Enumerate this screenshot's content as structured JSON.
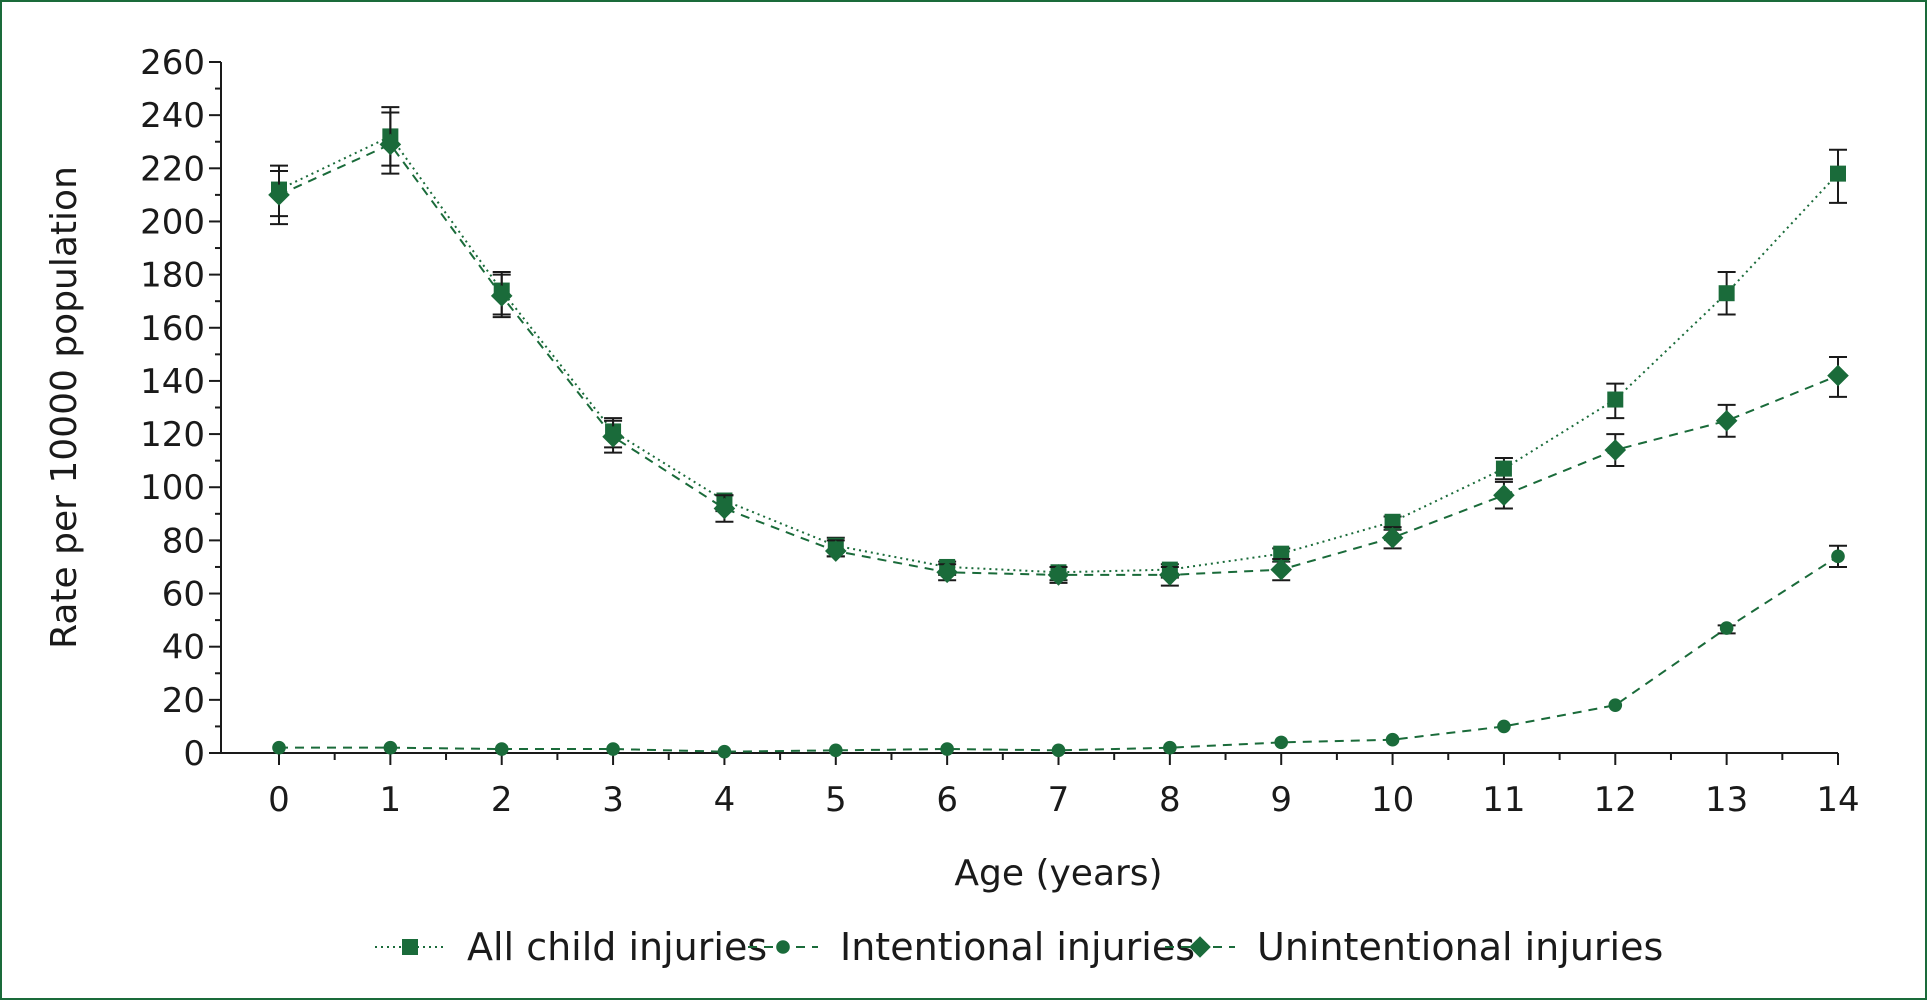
{
  "chart_data": {
    "type": "line",
    "xlabel": "Age (years)",
    "ylabel": "Rate per 10000 population",
    "xlim": [
      0,
      14
    ],
    "ylim": [
      0,
      260
    ],
    "x": [
      0,
      1,
      2,
      3,
      4,
      5,
      6,
      7,
      8,
      9,
      10,
      11,
      12,
      13,
      14
    ],
    "y_ticks": [
      0,
      20,
      40,
      60,
      80,
      100,
      120,
      140,
      160,
      180,
      200,
      220,
      240,
      260
    ],
    "grid": false,
    "legend_position": "bottom",
    "color": "#1a6b3a",
    "series": [
      {
        "name": "All child injuries",
        "marker": "square",
        "line_style": "dotted",
        "values": [
          212,
          232,
          174,
          121,
          95,
          78,
          70,
          68,
          69,
          75,
          87,
          107,
          133,
          173,
          218
        ],
        "error_low": [
          202,
          221,
          165,
          115,
          91,
          74,
          67,
          65,
          66,
          72,
          84,
          103,
          126,
          165,
          207
        ],
        "error_high": [
          221,
          243,
          181,
          126,
          97,
          81,
          72,
          70,
          71,
          77,
          89,
          111,
          139,
          181,
          227
        ]
      },
      {
        "name": "Intentional injuries",
        "marker": "circle",
        "line_style": "dashed",
        "values": [
          2,
          2,
          1.5,
          1.5,
          0.5,
          1,
          1.5,
          1,
          2,
          4,
          5,
          10,
          18,
          47,
          74
        ],
        "error_low": [
          null,
          null,
          null,
          null,
          null,
          null,
          null,
          null,
          null,
          null,
          null,
          null,
          null,
          45,
          70
        ],
        "error_high": [
          null,
          null,
          null,
          null,
          null,
          null,
          null,
          null,
          null,
          null,
          null,
          null,
          null,
          48,
          78
        ]
      },
      {
        "name": "Unintentional injuries",
        "marker": "diamond",
        "line_style": "dashed",
        "values": [
          210,
          229,
          172,
          119,
          92,
          76,
          68,
          67,
          67,
          69,
          81,
          97,
          114,
          125,
          142
        ],
        "error_low": [
          199,
          218,
          164,
          113,
          87,
          74,
          65,
          64,
          63,
          65,
          77,
          92,
          108,
          119,
          134
        ],
        "error_high": [
          219,
          241,
          180,
          125,
          97,
          80,
          71,
          70,
          70,
          73,
          85,
          102,
          120,
          131,
          149
        ]
      }
    ]
  }
}
